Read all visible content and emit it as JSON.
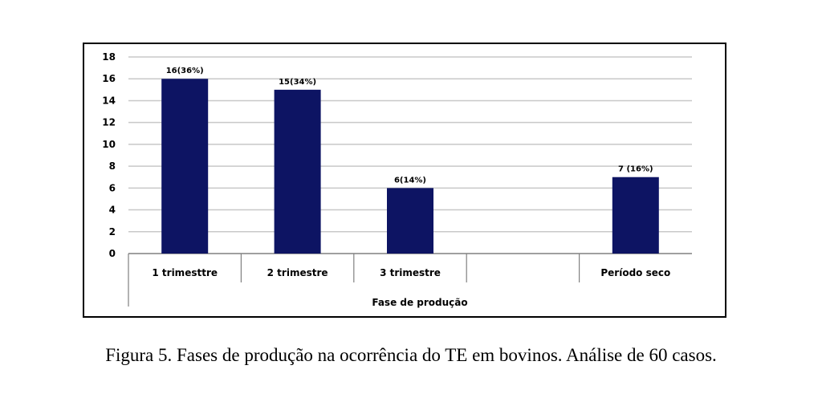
{
  "chart_data": {
    "type": "bar",
    "categories": [
      "1 trimesttre",
      "2 trimestre",
      "3 trimestre",
      "",
      "Período seco"
    ],
    "values": [
      16,
      15,
      6,
      null,
      7
    ],
    "data_labels": [
      "16(36%)",
      "15(34%)",
      "6(14%)",
      "",
      "7 (16%)"
    ],
    "xlabel": "Fase de produção",
    "ylabel": "",
    "ylim": [
      0,
      18
    ],
    "yticks": [
      0,
      2,
      4,
      6,
      8,
      10,
      12,
      14,
      16,
      18
    ],
    "grid": true,
    "bar_color": "#0d1463",
    "grid_color": "#c8c8c8"
  },
  "caption": "Figura 5. Fases de produção na ocorrência do TE em bovinos.  Análise de 60 casos."
}
